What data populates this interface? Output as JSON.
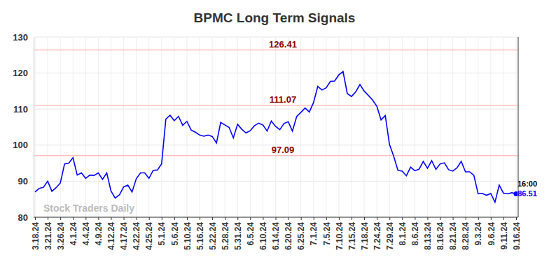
{
  "chart_data": {
    "type": "line",
    "title": "BPMC Long Term Signals",
    "watermark": "Stock Traders Daily",
    "annotations": [
      "16:00"
    ],
    "categories": [
      "3.18.24",
      null,
      null,
      "3.21.24",
      null,
      null,
      "3.26.24",
      null,
      null,
      "4.1.24",
      null,
      null,
      "4.4.24",
      null,
      null,
      "4.9.24",
      null,
      null,
      "4.12.24",
      null,
      null,
      "4.17.24",
      null,
      null,
      "4.22.24",
      null,
      null,
      "4.25.24",
      null,
      null,
      "5.1.24",
      null,
      null,
      "5.6.24",
      null,
      null,
      "5.10.24",
      null,
      null,
      "5.16.24",
      null,
      null,
      "5.22.24",
      null,
      null,
      "5.28.24",
      null,
      null,
      "5.31.24",
      null,
      null,
      "6.5.24",
      null,
      null,
      "6.10.24",
      null,
      null,
      "6.14.24",
      null,
      null,
      "6.20.24",
      null,
      null,
      "6.25.24",
      null,
      null,
      "7.1.24",
      null,
      null,
      "7.5.24",
      null,
      null,
      "7.10.24",
      null,
      null,
      "7.15.24",
      null,
      null,
      "7.18.24",
      null,
      null,
      "7.24.24",
      null,
      null,
      "7.29.24",
      null,
      null,
      "8.1.24",
      null,
      null,
      "8.6.24",
      null,
      null,
      "8.13.24",
      null,
      null,
      "8.16.24",
      null,
      null,
      "8.21.24",
      null,
      null,
      "8.28.24",
      null,
      null,
      "9.3.24",
      null,
      null,
      "9.6.24",
      null,
      null,
      "9.11.24",
      null,
      null,
      "9.16.24"
    ],
    "values": [
      87,
      88,
      88.3,
      90,
      87.2,
      88.2,
      89.5,
      94.8,
      95,
      96.5,
      91.7,
      92.3,
      90.8,
      91.7,
      91.6,
      92.3,
      90.5,
      92.3,
      87.3,
      85.3,
      86.2,
      88.4,
      88.9,
      87.0,
      90.7,
      92.3,
      92.3,
      90.8,
      93.0,
      93.1,
      94.8,
      107.2,
      108.3,
      106.8,
      108.0,
      105.5,
      106.6,
      104.2,
      103.6,
      102.8,
      102.5,
      102.8,
      102.4,
      100.6,
      106.3,
      105.6,
      104.9,
      102.0,
      105.8,
      104.4,
      103.4,
      104.0,
      105.4,
      106.1,
      105.6,
      103.9,
      106.7,
      105.2,
      104.3,
      106.0,
      106.5,
      103.9,
      107.9,
      109.1,
      110.3,
      109.2,
      111.8,
      116.3,
      115.3,
      115.9,
      117.7,
      117.8,
      119.5,
      120.4,
      114.3,
      113.5,
      114.8,
      116.8,
      115.0,
      113.8,
      112.5,
      110.8,
      107.0,
      108.2,
      100.2,
      96.9,
      93.0,
      92.8,
      91.5,
      93.9,
      92.9,
      93.3,
      95.5,
      93.6,
      95.7,
      93.3,
      94.8,
      95.1,
      93.2,
      92.8,
      93.7,
      95.5,
      92.6,
      92.6,
      91.6,
      86.5,
      86.6,
      86.1,
      86.6,
      84.2,
      88.9,
      86.7,
      86.5,
      86.8,
      86.51
    ],
    "levels": [
      126.41,
      111.07,
      97.09
    ],
    "color": "#0000ff",
    "ylim": [
      80,
      130
    ],
    "yticks": [
      80,
      90,
      100,
      110,
      120,
      130
    ],
    "grid": true
  }
}
